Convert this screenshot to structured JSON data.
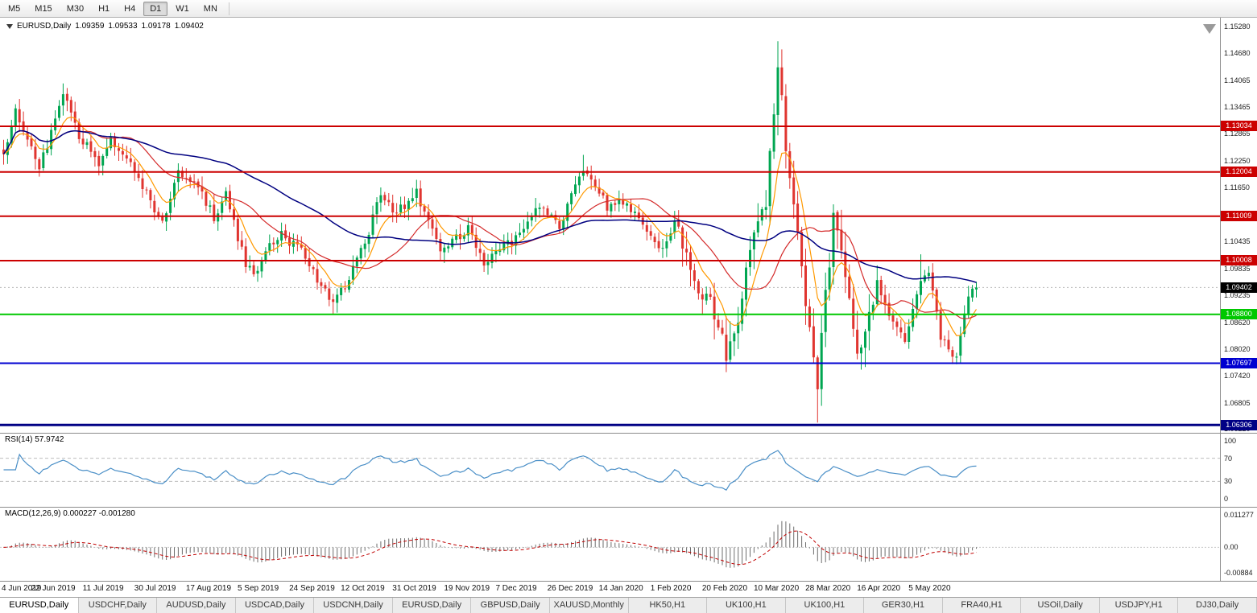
{
  "toolbar": {
    "timeframes": [
      "M5",
      "M15",
      "M30",
      "H1",
      "H4",
      "D1",
      "W1",
      "MN"
    ],
    "active": "D1"
  },
  "chart": {
    "title": {
      "symbol": "EURUSD,Daily",
      "open": "1.09359",
      "high": "1.09533",
      "low": "1.09178",
      "close": "1.09402"
    },
    "price_axis": {
      "ticks": [
        "1.15280",
        "1.14680",
        "1.14065",
        "1.13465",
        "1.12865",
        "1.12250",
        "1.11650",
        "1.10435",
        "1.09835",
        "1.09235",
        "1.08620",
        "1.08020",
        "1.07420",
        "1.06805",
        "1.06220"
      ],
      "range": {
        "max": 1.1548,
        "min": 1.0613
      }
    },
    "hlines": [
      {
        "price": 1.13034,
        "label": "1.13034",
        "color": "#cc0000",
        "width": 2
      },
      {
        "price": 1.12004,
        "label": "1.12004",
        "color": "#cc0000",
        "width": 2
      },
      {
        "price": 1.11009,
        "label": "1.11009",
        "color": "#cc0000",
        "width": 2
      },
      {
        "price": 1.10008,
        "label": "1.10008",
        "color": "#cc0000",
        "width": 2
      },
      {
        "price": 1.088,
        "label": "1.08800",
        "color": "#00c800",
        "width": 2
      },
      {
        "price": 1.07697,
        "label": "1.07697",
        "color": "#0000d0",
        "width": 2
      },
      {
        "price": 1.06306,
        "label": "1.06306",
        "color": "#000085",
        "width": 3
      }
    ],
    "bid": {
      "label": "1.09402",
      "price": 1.09402,
      "tag_color": "#000000"
    },
    "date_axis": [
      "4 Jun 2019",
      "22 Jun 2019",
      "11 Jul 2019",
      "30 Jul 2019",
      "17 Aug 2019",
      "5 Sep 2019",
      "24 Sep 2019",
      "12 Oct 2019",
      "31 Oct 2019",
      "19 Nov 2019",
      "7 Dec 2019",
      "26 Dec 2019",
      "14 Jan 2020",
      "1 Feb 2020",
      "20 Feb 2020",
      "10 Mar 2020",
      "28 Mar 2020",
      "16 Apr 2020",
      "5 May 2020"
    ]
  },
  "rsi": {
    "title": "RSI(14) 57.9742",
    "value": 57.9742,
    "period": 14,
    "axis_ticks": [
      {
        "label": "100",
        "value": 100
      },
      {
        "label": "70",
        "value": 70
      },
      {
        "label": "30",
        "value": 30
      },
      {
        "label": "0",
        "value": 0
      }
    ],
    "levels": [
      70,
      30
    ],
    "line_color": "#4a8fc7"
  },
  "macd": {
    "title": "MACD(12,26,9) 0.000227 -0.001280",
    "values": {
      "macd": "0.000227",
      "signal": "-0.001280"
    },
    "params": {
      "fast": 12,
      "slow": 26,
      "signal": 9
    },
    "axis_ticks": [
      {
        "label": "0.011277",
        "value": 0.011277
      },
      {
        "label": "0.00",
        "value": 0
      },
      {
        "label": "-0.00884",
        "value": -0.00884
      }
    ],
    "range": {
      "max": 0.011277,
      "min": -0.00884
    },
    "histogram_color": "#6e6e6e",
    "signal_color": "#c00000"
  },
  "tabs": [
    "EURUSD,Daily",
    "USDCHF,Daily",
    "AUDUSD,Daily",
    "USDCAD,Daily",
    "USDCNH,Daily",
    "EURUSD,Daily",
    "GBPUSD,Daily",
    "XAUUSD,Monthly",
    "HK50,H1",
    "UK100,H1",
    "UK100,H1",
    "GER30,H1",
    "FRA40,H1",
    "USOil,Daily",
    "USDJPY,H1",
    "DJ30,Daily"
  ],
  "active_tab": 0,
  "chart_data": {
    "type": "candlestick",
    "symbol": "EURUSD",
    "timeframe": "Daily",
    "candle_count": 246,
    "visible_range": {
      "first_label": "4 Jun 2019",
      "last_label": "5 May 2020"
    },
    "last_ohlc": {
      "open": 1.09359,
      "high": 1.09533,
      "low": 1.09178,
      "close": 1.09402
    },
    "up_color": "#00a651",
    "down_color": "#e03530",
    "moving_averages": [
      {
        "name": "fast-ma",
        "period": 8,
        "method": "ema",
        "color": "#ff9900",
        "width": 1.2
      },
      {
        "name": "mid-ma",
        "period": 21,
        "method": "sma",
        "color": "#d42a2a",
        "width": 1.2
      },
      {
        "name": "slow-ma",
        "period": 55,
        "method": "sma",
        "color": "#000080",
        "width": 1.5
      }
    ],
    "price_path_anchors": [
      [
        0,
        1.125
      ],
      [
        3,
        1.1333
      ],
      [
        9,
        1.1208
      ],
      [
        12,
        1.129
      ],
      [
        15,
        1.138
      ],
      [
        19,
        1.1285
      ],
      [
        24,
        1.1215
      ],
      [
        27,
        1.127
      ],
      [
        32,
        1.122
      ],
      [
        36,
        1.115
      ],
      [
        40,
        1.108
      ],
      [
        44,
        1.12
      ],
      [
        49,
        1.117
      ],
      [
        53,
        1.11
      ],
      [
        56,
        1.115
      ],
      [
        61,
        1.099
      ],
      [
        63,
        1.097
      ],
      [
        67,
        1.103
      ],
      [
        70,
        1.106
      ],
      [
        75,
        1.102
      ],
      [
        79,
        1.096
      ],
      [
        83,
        1.09
      ],
      [
        88,
        1.098
      ],
      [
        91,
        1.104
      ],
      [
        95,
        1.115
      ],
      [
        99,
        1.111
      ],
      [
        104,
        1.1152
      ],
      [
        110,
        1.103
      ],
      [
        114,
        1.105
      ],
      [
        117,
        1.1075
      ],
      [
        121,
        1.1
      ],
      [
        124,
        1.1018
      ],
      [
        130,
        1.106
      ],
      [
        135,
        1.1122
      ],
      [
        140,
        1.108
      ],
      [
        146,
        1.121
      ],
      [
        149,
        1.117
      ],
      [
        152,
        1.1122
      ],
      [
        156,
        1.1136
      ],
      [
        161,
        1.109
      ],
      [
        166,
        1.102
      ],
      [
        169,
        1.1094
      ],
      [
        174,
        1.095
      ],
      [
        178,
        1.0915
      ],
      [
        182,
        1.079
      ],
      [
        185,
        1.088
      ],
      [
        188,
        1.103
      ],
      [
        192,
        1.114
      ],
      [
        195,
        1.144
      ],
      [
        198,
        1.118
      ],
      [
        200,
        1.106
      ],
      [
        202,
        1.092
      ],
      [
        205,
        1.073
      ],
      [
        209,
        1.11
      ],
      [
        212,
        1.096
      ],
      [
        215,
        1.08
      ],
      [
        218,
        1.087
      ],
      [
        220,
        1.095
      ],
      [
        223,
        1.087
      ],
      [
        227,
        1.082
      ],
      [
        231,
        1.095
      ],
      [
        233,
        1.098
      ],
      [
        236,
        1.083
      ],
      [
        238,
        1.08
      ],
      [
        240,
        1.079
      ],
      [
        243,
        1.0915
      ],
      [
        245,
        1.094
      ]
    ],
    "extremes": [
      {
        "index": 15,
        "high": 1.14
      },
      {
        "index": 83,
        "low": 1.0879
      },
      {
        "index": 146,
        "high": 1.1239
      },
      {
        "index": 182,
        "low": 1.0778
      },
      {
        "index": 195,
        "high": 1.1495
      },
      {
        "index": 205,
        "low": 1.0636
      },
      {
        "index": 220,
        "high": 1.099
      },
      {
        "index": 231,
        "high": 1.1015
      },
      {
        "index": 240,
        "low": 1.0775
      }
    ],
    "seed": 1234
  }
}
